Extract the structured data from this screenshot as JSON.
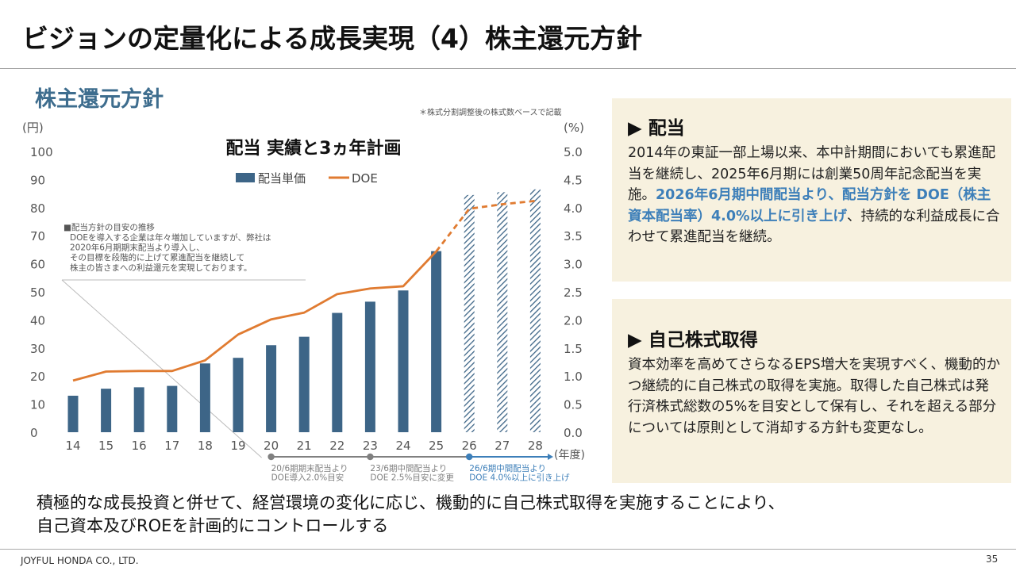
{
  "slide": {
    "title": "ビジョンの定量化による成長実現（4）株主還元方針",
    "section_title": "株主還元方針",
    "note": "＊株式分割調整後の株式数ベースで記載",
    "footer": "JOYFUL HONDA CO., LTD.",
    "page_number": "35"
  },
  "chart_data": {
    "type": "bar",
    "title": "配当 実績と3ヵ年計画",
    "categories": [
      "14",
      "15",
      "16",
      "17",
      "18",
      "19",
      "20",
      "21",
      "22",
      "23",
      "24",
      "25",
      "26",
      "27",
      "28"
    ],
    "left_axis": {
      "unit": "(円)",
      "min": 0,
      "max": 100,
      "ticks": [
        "0",
        "10",
        "20",
        "30",
        "40",
        "50",
        "60",
        "70",
        "80",
        "90",
        "100"
      ]
    },
    "right_axis": {
      "unit": "(%)",
      "min": 0,
      "max": 5,
      "ticks": [
        "0.0",
        "0.5",
        "1.0",
        "1.5",
        "2.0",
        "2.5",
        "3.0",
        "3.5",
        "4.0",
        "4.5",
        "5.0"
      ]
    },
    "x_unit": "(年度)",
    "grid": false,
    "legend_position": "top-center",
    "series": [
      {
        "name": "配当単価",
        "kind": "bar",
        "color": "#3d6587",
        "values": [
          13,
          15.5,
          16,
          16.5,
          24.5,
          26.5,
          31,
          34,
          42.5,
          46.5,
          50.5,
          64.5,
          84.5,
          85.5,
          86.5
        ],
        "planned_from_index": 12
      },
      {
        "name": "DOE",
        "kind": "line",
        "color": "#e07b31",
        "values": [
          0.92,
          1.08,
          1.09,
          1.09,
          1.28,
          1.74,
          2.01,
          2.13,
          2.46,
          2.56,
          2.6,
          3.22,
          3.98,
          4.06,
          4.12
        ],
        "dashed_from_index": 11
      }
    ],
    "annotation": {
      "title": "■配当方針の目安の推移",
      "lines": [
        "DOEを導入する企業は年々増加していますが、弊社は",
        "2020年6月期期末配当より導入し、",
        "その目標を段階的に上げて累進配当を継続して",
        "株主の皆さまへの利益還元を実現しております。"
      ]
    },
    "milestones": [
      {
        "category": "20",
        "lines": [
          "20/6期期末配当より",
          "DOE導入2.0%目安"
        ],
        "color": "#808080"
      },
      {
        "category": "23",
        "lines": [
          "23/6期中間配当より",
          "DOE 2.5%目安に変更"
        ],
        "color": "#808080"
      },
      {
        "category": "26",
        "lines": [
          "26/6期中間配当より",
          "DOE 4.0%以上に引き上げ"
        ],
        "color": "#3d7fb9"
      }
    ]
  },
  "panels": {
    "dividend": {
      "heading": "配当",
      "text_1": "2014年の東証一部上場以来、本中計期間においても累進配当を継続し、2025年6月期には創業50周年記念配当を実施。",
      "highlight": "2026年6月期中間配当より、配当方針を DOE（株主資本配当率）4.0%以上に引き上げ",
      "text_2": "、持続的な利益成長に合わせて累進配当を継続。"
    },
    "buyback": {
      "heading": "自己株式取得",
      "text": "資本効率を高めてさらなるEPS増大を実現すべく、機動的かつ継続的に自己株式の取得を実施。取得した自己株式は発行済株式総数の5%を目安として保有し、それを超える部分については原則として消却する方針も変更なし。"
    }
  },
  "summary": {
    "line1": "積極的な成長投資と併せて、経営環境の変化に応じ、機動的に自己株式取得を実施することにより、",
    "line2": "自己資本及びROEを計画的にコントロールする"
  }
}
